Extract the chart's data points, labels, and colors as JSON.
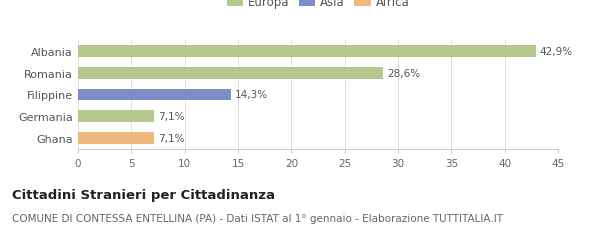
{
  "categories": [
    "Albania",
    "Romania",
    "Filippine",
    "Germania",
    "Ghana"
  ],
  "values": [
    42.9,
    28.6,
    14.3,
    7.1,
    7.1
  ],
  "labels": [
    "42,9%",
    "28,6%",
    "14,3%",
    "7,1%",
    "7,1%"
  ],
  "colors": [
    "#b5c98e",
    "#b5c98e",
    "#7b8ec8",
    "#b5c98e",
    "#f0b87a"
  ],
  "legend_items": [
    {
      "label": "Europa",
      "color": "#b5c98e"
    },
    {
      "label": "Asia",
      "color": "#7b8ec8"
    },
    {
      "label": "Africa",
      "color": "#f0b87a"
    }
  ],
  "xlim": [
    0,
    45
  ],
  "xticks": [
    0,
    5,
    10,
    15,
    20,
    25,
    30,
    35,
    40,
    45
  ],
  "title": "Cittadini Stranieri per Cittadinanza",
  "subtitle": "COMUNE DI CONTESSA ENTELLINA (PA) - Dati ISTAT al 1° gennaio - Elaborazione TUTTITALIA.IT",
  "title_fontsize": 9.5,
  "subtitle_fontsize": 7.5,
  "background_color": "#ffffff"
}
